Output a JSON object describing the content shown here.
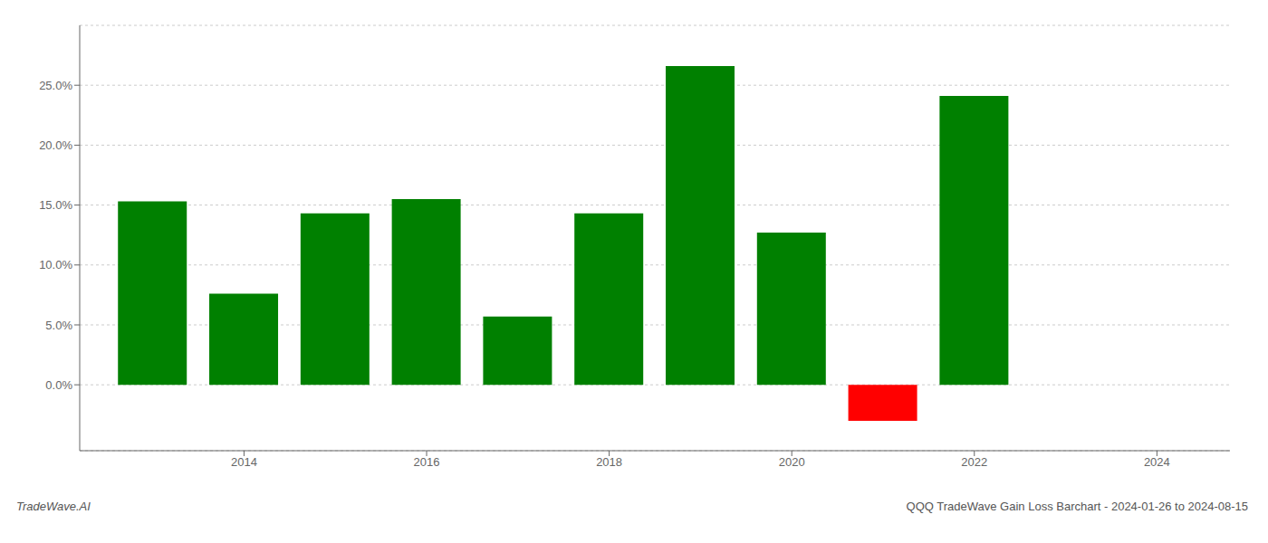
{
  "chart_data": {
    "type": "bar",
    "x": [
      2013,
      2014,
      2015,
      2016,
      2017,
      2018,
      2019,
      2020,
      2021,
      2022
    ],
    "values": [
      0.153,
      0.076,
      0.143,
      0.155,
      0.057,
      0.143,
      0.266,
      0.127,
      -0.03,
      0.241
    ],
    "colors": [
      "#008000",
      "#008000",
      "#008000",
      "#008000",
      "#008000",
      "#008000",
      "#008000",
      "#008000",
      "#ff0000",
      "#008000"
    ],
    "xlim": [
      2012.2,
      2024.8
    ],
    "xticks": [
      2014,
      2016,
      2018,
      2020,
      2022,
      2024
    ],
    "ylim": [
      -0.055,
      0.3
    ],
    "yticks": [
      {
        "value": 0.0,
        "label": "0.0%"
      },
      {
        "value": 0.05,
        "label": "5.0%"
      },
      {
        "value": 0.1,
        "label": "10.0%"
      },
      {
        "value": 0.15,
        "label": "15.0%"
      },
      {
        "value": 0.2,
        "label": "20.0%"
      },
      {
        "value": 0.25,
        "label": "25.0%"
      }
    ],
    "grid": "y",
    "annotations": [
      "TradeWave.AI",
      "QQQ TradeWave Gain Loss Barchart - 2024-01-26 to 2024-08-15"
    ]
  }
}
